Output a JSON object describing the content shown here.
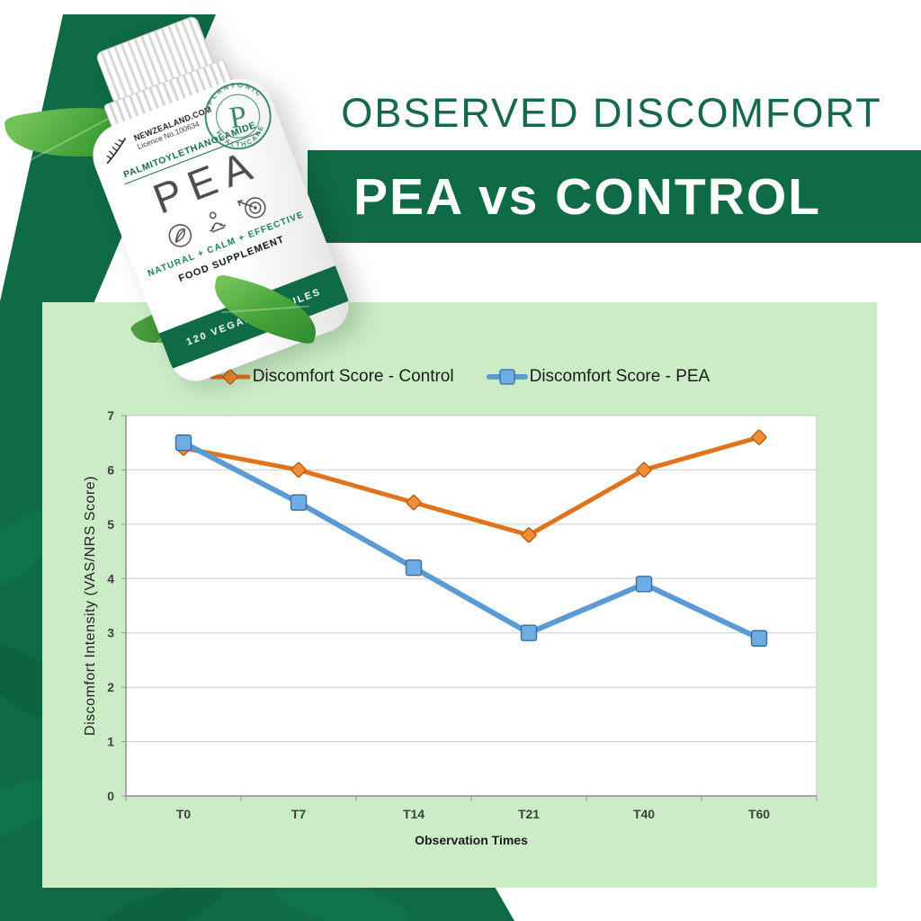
{
  "header": {
    "title": "OBSERVED DISCOMFORT",
    "banner": "PEA vs CONTROL"
  },
  "product": {
    "brand_site": "NEWZEALAND.COM",
    "licence": "Licence No.100634",
    "compound": "PALMITOYLETHANOLAMIDE",
    "name": "PEA",
    "tagline": "NATURAL + CALM + EFFECTIVE",
    "food_supplement": "FOOD SUPPLEMENT",
    "capsules": "120 VEGAN CAPSULES",
    "stamp": {
      "top": "PLANTONIC",
      "bottom": "HEALTHCARE",
      "letter": "P"
    },
    "icons": [
      "fern-logo-icon",
      "leaf-icon",
      "meditation-icon",
      "target-icon"
    ]
  },
  "colors": {
    "dark_green": "#0E6B45",
    "title_green": "#15694A",
    "panel_green": "#CBEDC6",
    "control_orange": "#E0731D",
    "pea_blue": "#5B9BD5"
  },
  "chart_data": {
    "type": "line",
    "title": "",
    "categories": [
      "T0",
      "T7",
      "T14",
      "T21",
      "T40",
      "T60"
    ],
    "series": [
      {
        "name": "Discomfort Score - Control",
        "values": [
          6.4,
          6.0,
          5.4,
          4.8,
          6.0,
          6.6
        ],
        "color": "#E0731D",
        "marker": "diamond",
        "marker_fill": "#EF8E35",
        "marker_stroke": "#B85C12",
        "width": 5
      },
      {
        "name": "Discomfort Score - PEA",
        "values": [
          6.5,
          5.4,
          4.2,
          3.0,
          3.9,
          2.9
        ],
        "color": "#5B9BD5",
        "marker": "square",
        "marker_fill": "#6FACE2",
        "marker_stroke": "#3A6D9E",
        "width": 6
      }
    ],
    "xlabel": "Observation Times",
    "ylabel": "Discomfort Intensity (VAS/NRS Score)",
    "ylim": [
      0,
      7
    ],
    "yticks": [
      0,
      1,
      2,
      3,
      4,
      5,
      6,
      7
    ],
    "grid": true,
    "plot_background": "#ffffff",
    "legend_position": "top"
  }
}
